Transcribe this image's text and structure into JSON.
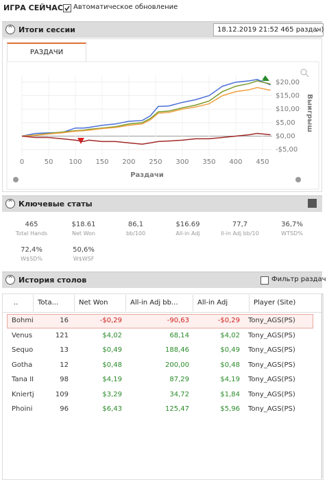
{
  "header": {
    "title": "ИГРА СЕЙЧАС",
    "auto_update": "Автоматическое обновление"
  },
  "session": {
    "title": "Итоги сессии",
    "dropdown": "18.12.2019 21:52 465 раздач)",
    "tab": "РАЗДАЧИ"
  },
  "chart_data": {
    "type": "line",
    "xlabel": "Раздачи",
    "ylabel": "Выигрыш",
    "x": [
      0,
      25,
      50,
      75,
      100,
      115,
      125,
      150,
      175,
      200,
      225,
      240,
      255,
      275,
      300,
      325,
      350,
      375,
      400,
      425,
      440,
      465
    ],
    "series": [
      {
        "color": "#4a6fd8",
        "values": [
          0,
          1,
          1.2,
          1.3,
          3,
          3,
          3.2,
          4,
          4.5,
          5.5,
          5.8,
          7.5,
          11,
          11.2,
          12.5,
          13.5,
          15,
          18.5,
          20,
          20.5,
          21,
          19
        ]
      },
      {
        "color": "#7a9a2a",
        "values": [
          0,
          0.4,
          1,
          1.5,
          2,
          2.2,
          2.5,
          3,
          3.5,
          4.5,
          5,
          6.5,
          9,
          9.3,
          10.5,
          11.5,
          13,
          16.5,
          18.5,
          19.5,
          20.5,
          19.3
        ]
      },
      {
        "color": "#f0a040",
        "values": [
          0,
          0.3,
          0.8,
          1.2,
          1.8,
          2,
          2.2,
          2.8,
          3.2,
          4,
          4.5,
          6,
          8.5,
          8.8,
          10,
          10.8,
          12,
          15,
          16.5,
          17.2,
          18,
          17
        ]
      },
      {
        "color": "#a02828",
        "values": [
          0,
          -0.5,
          -0.5,
          -1,
          -1.5,
          -2,
          -1.5,
          -2,
          -2,
          -2.5,
          -3,
          -2.5,
          -2,
          -1.8,
          -1.5,
          -1,
          -1,
          -0.5,
          0,
          0.5,
          1,
          0.5
        ]
      }
    ],
    "xlim": [
      0,
      468
    ],
    "ylim": [
      -7.5,
      22.5
    ],
    "xticks": [
      0,
      50,
      100,
      150,
      200,
      250,
      300,
      350,
      400,
      450
    ],
    "yticks": [
      {
        "value": 20,
        "label": "$20,00"
      },
      {
        "value": 15,
        "label": "$15,00"
      },
      {
        "value": 10,
        "label": "$10,00"
      },
      {
        "value": 5,
        "label": "$5,00"
      },
      {
        "value": 0,
        "label": "$0,00"
      },
      {
        "value": -5,
        "label": "-$5,00"
      }
    ],
    "grid": true
  },
  "stats": {
    "title": "Ключевые статы",
    "items": [
      {
        "value": "465",
        "label": "Total Hands"
      },
      {
        "value": "$18.61",
        "label": "Net Won"
      },
      {
        "value": "86,1",
        "label": "bb/100"
      },
      {
        "value": "$16.69",
        "label": "All-in Adj"
      },
      {
        "value": "77,7",
        "label": "ll-in Adj bb/10"
      },
      {
        "value": "36,7%",
        "label": "WTSD%"
      },
      {
        "value": "72,4%",
        "label": "W$SD%"
      },
      {
        "value": "50,6%",
        "label": "W$WSF"
      }
    ]
  },
  "history": {
    "title": "История столов",
    "filter": "Фильтр раздач",
    "columns": [
      "..",
      "Tota...",
      "Net Won",
      "All-in Adj bb...",
      "All-in Adj",
      "Player (Site)"
    ],
    "rows": [
      [
        "Bohmi",
        "16",
        "-$0,29",
        "-90,63",
        "-$0,29",
        "Tony_AGS(PS)"
      ],
      [
        "Venus",
        "121",
        "$4,02",
        "68,14",
        "$4,02",
        "Tony_AGS(PS)"
      ],
      [
        "Sequo",
        "13",
        "$0,49",
        "188,46",
        "$0,49",
        "Tony_AGS(PS)"
      ],
      [
        "Gotha",
        "12",
        "$0,48",
        "200,00",
        "$0,48",
        "Tony_AGS(PS)"
      ],
      [
        "Tana II",
        "98",
        "$4,19",
        "87,29",
        "$4,19",
        "Tony_AGS(PS)"
      ],
      [
        "Kniertj",
        "109",
        "$3,29",
        "34,72",
        "$1,84",
        "Tony_AGS(PS)"
      ],
      [
        "Phoini",
        "96",
        "$6,43",
        "125,47",
        "$5,96",
        "Tony_AGS(PS)"
      ]
    ]
  }
}
